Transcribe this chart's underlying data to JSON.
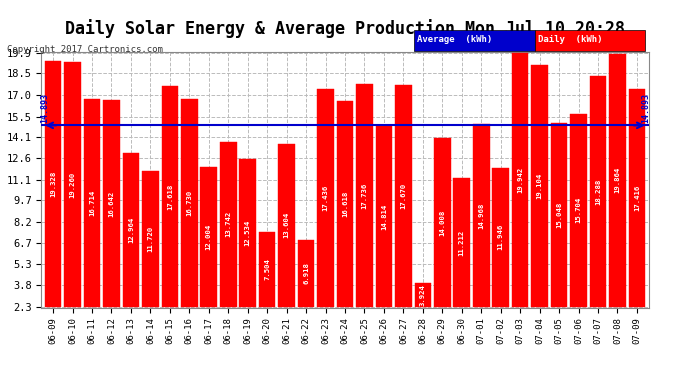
{
  "title": "Daily Solar Energy & Average Production Mon Jul 10 20:28",
  "copyright": "Copyright 2017 Cartronics.com",
  "average_label": "Average  (kWh)",
  "daily_label": "Daily  (kWh)",
  "average_value": 14.893,
  "categories": [
    "06-09",
    "06-10",
    "06-11",
    "06-12",
    "06-13",
    "06-14",
    "06-15",
    "06-16",
    "06-17",
    "06-18",
    "06-19",
    "06-20",
    "06-21",
    "06-22",
    "06-23",
    "06-24",
    "06-25",
    "06-26",
    "06-27",
    "06-28",
    "06-29",
    "06-30",
    "07-01",
    "07-02",
    "07-03",
    "07-04",
    "07-05",
    "07-06",
    "07-07",
    "07-08",
    "07-09"
  ],
  "values": [
    19.328,
    19.26,
    16.714,
    16.642,
    12.964,
    11.72,
    17.618,
    16.73,
    12.004,
    13.742,
    12.534,
    7.504,
    13.604,
    6.918,
    17.436,
    16.618,
    17.736,
    14.814,
    17.67,
    3.924,
    14.008,
    11.212,
    14.968,
    11.946,
    19.942,
    19.104,
    15.048,
    15.704,
    18.288,
    19.864,
    17.416
  ],
  "bar_color": "#ff0000",
  "avg_line_color": "#0000cc",
  "yticks": [
    2.3,
    3.8,
    5.3,
    6.7,
    8.2,
    9.7,
    11.1,
    12.6,
    14.1,
    15.5,
    17.0,
    18.5,
    19.9
  ],
  "ylim_min": 2.3,
  "ylim_max": 19.9,
  "background_color": "#ffffff",
  "grid_color": "#bbbbbb",
  "title_fontsize": 12,
  "avg_annotation": "14.893",
  "legend_avg_bg": "#0000cc",
  "legend_daily_bg": "#ff0000",
  "legend_text_color": "#ffffff"
}
